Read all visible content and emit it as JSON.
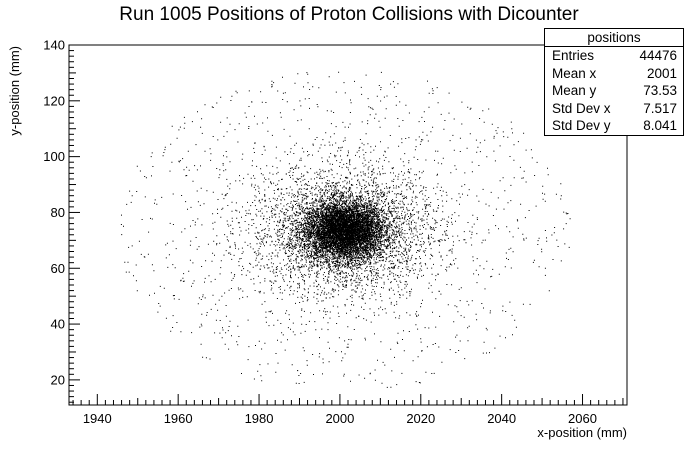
{
  "chart_data": {
    "type": "scatter",
    "title": "Run 1005 Positions of Proton Collisions with Dicounter",
    "xlabel": "x-position (mm)",
    "ylabel": "y-position (mm)",
    "xlim": [
      1933,
      2071
    ],
    "ylim": [
      11,
      140
    ],
    "x_ticks": [
      1940,
      1960,
      1980,
      2000,
      2020,
      2040,
      2060
    ],
    "y_ticks": [
      20,
      40,
      60,
      80,
      100,
      120,
      140
    ],
    "grid": false,
    "legend": "none",
    "marker_color": "#000000",
    "distribution": {
      "core": {
        "center": [
          2001,
          73.5
        ],
        "radius": [
          5.5,
          6.5
        ]
      },
      "halo": {
        "spread_x": [
          1945,
          2057
        ],
        "spread_y": [
          17,
          133
        ]
      }
    },
    "stats_box": {
      "title": "positions",
      "placement": "top-right",
      "entries": [
        {
          "label": "Entries",
          "value": "44476"
        },
        {
          "label": "Mean x",
          "value": "2001"
        },
        {
          "label": "Mean y",
          "value": "73.53"
        },
        {
          "label": "Std Dev x",
          "value": "7.517"
        },
        {
          "label": "Std Dev y",
          "value": "8.041"
        }
      ]
    }
  }
}
